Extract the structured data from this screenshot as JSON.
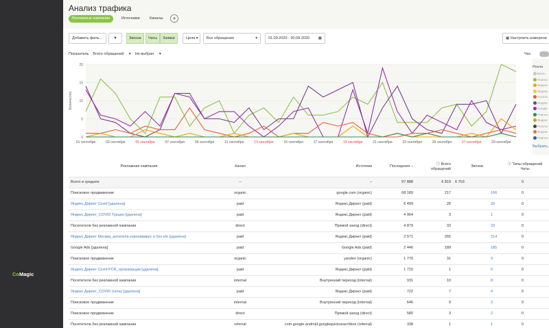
{
  "app": {
    "logo_brand": "Co",
    "logo_rest": "Magic"
  },
  "header": {
    "title": "Анализ трафика",
    "tabs": [
      "Рекламные кампании",
      "Источники",
      "Каналы"
    ],
    "add_label": "+"
  },
  "toolbar": {
    "add_filter": "Добавить филь...",
    "filter_icon": "▼",
    "segments": [
      "Звонки",
      "Чаты",
      "Заявки"
    ],
    "goals": "Цели",
    "requests_select": "Все обращения",
    "date_range": "01.09.2020 - 30.09.2020",
    "configure": "Настроить измерени"
  },
  "selectors": {
    "indicator_label": "Показатель",
    "indicator_value": "Всего обращений",
    "second_value": "Не выбран"
  },
  "view_toggle": {
    "label": "Час"
  },
  "legend": {
    "title": "Рекла",
    "items": [
      {
        "label": "Всего",
        "color": "#c8c8c8"
      },
      {
        "label": "Поиско",
        "color": "#8bc34a"
      },
      {
        "label": "Яндекс",
        "color": "#f0a500"
      },
      {
        "label": "Яндекс",
        "color": "#f6c343"
      },
      {
        "label": "Посети",
        "color": "#e35d3a"
      },
      {
        "label": "Яндекс",
        "color": "#7a3b8f"
      },
      {
        "label": "Google",
        "color": "#9c2bab"
      },
      {
        "label": "Поиско",
        "color": "#2e8b57"
      },
      {
        "label": "Яндекс",
        "color": "#c0a030"
      },
      {
        "label": "Посети",
        "color": "#444444"
      },
      {
        "label": "Яндекс",
        "color": "#d87a2a"
      },
      {
        "label": "Поиско",
        "color": "#3b5ba5"
      }
    ],
    "select_label": "Выбрать"
  },
  "chart_data": {
    "type": "line",
    "ylabel": "Количество",
    "ylim": [
      0,
      20
    ],
    "yticks": [
      0,
      5,
      10,
      15,
      20
    ],
    "x": [
      "01 сентября",
      "02",
      "03 сентября",
      "04",
      "05 сентября",
      "06",
      "07 сентября",
      "08",
      "09 сентября",
      "10",
      "11 сентября",
      "12",
      "13 сентября",
      "14",
      "15 сентября",
      "16",
      "17 сентября",
      "18",
      "19 сентября",
      "20",
      "21 сентября",
      "22",
      "23 сентября",
      "24",
      "25 сентября",
      "26",
      "27 сентября",
      "28",
      "29 сентября",
      "30"
    ],
    "xtick_labels": [
      "01 сентября",
      "03 сентября",
      "05 сентября",
      "07 сентября",
      "09 сентября",
      "11 сентября",
      "13 сентября",
      "15 сентября",
      "17 сентября",
      "19 сентября",
      "21 сентября",
      "23 сентября",
      "25 сентября",
      "27 сентября",
      "29 сентября"
    ],
    "weekend_labels": [
      "05 сентября",
      "13 сентября",
      "19 сентября",
      "27 сентября"
    ],
    "weekend_color": "#e53935",
    "series": [
      {
        "color": "#8bc34a",
        "values": [
          7,
          16,
          12,
          5,
          1,
          11,
          11,
          3,
          8,
          10,
          1,
          6,
          8,
          4,
          11,
          6,
          6,
          7,
          11,
          9,
          15,
          4,
          4,
          4,
          8,
          9,
          3,
          7,
          20,
          18
        ]
      },
      {
        "color": "#7a3b8f",
        "values": [
          14,
          5,
          4,
          1,
          0,
          2,
          12,
          11,
          5,
          5,
          4,
          8,
          2,
          5,
          5,
          14,
          11,
          13,
          15,
          0,
          8,
          14,
          5,
          2,
          1,
          9,
          9,
          10,
          1,
          9
        ]
      },
      {
        "color": "#9c2bab",
        "values": [
          13,
          6,
          5,
          3,
          7,
          3,
          12,
          12,
          5,
          7,
          7,
          3,
          0,
          3,
          7,
          8,
          0,
          0,
          13,
          1,
          19,
          7,
          1,
          6,
          4,
          2,
          10,
          4,
          2,
          3
        ]
      },
      {
        "color": "#e35d3a",
        "values": [
          1,
          1,
          2,
          1,
          3,
          2,
          2,
          8,
          2,
          1,
          0,
          1,
          3,
          0,
          1,
          1,
          4,
          3,
          4,
          1,
          0,
          0,
          1,
          1,
          2,
          1,
          0,
          1,
          2,
          1
        ]
      },
      {
        "color": "#f0a500",
        "values": [
          0,
          1,
          0,
          0,
          2,
          1,
          0,
          1,
          0,
          0,
          1,
          0,
          0,
          0,
          1,
          0,
          0,
          0,
          3,
          0,
          0,
          1,
          0,
          0,
          0,
          0,
          1,
          0,
          5,
          2
        ]
      },
      {
        "color": "#2e8b57",
        "values": [
          0,
          0,
          0,
          0,
          0,
          0,
          0,
          0,
          0,
          0,
          0,
          0,
          0,
          0,
          0,
          0,
          0,
          0,
          0,
          0,
          0,
          1,
          0,
          1,
          0,
          0,
          0,
          0,
          1,
          0
        ]
      }
    ]
  },
  "table": {
    "headers": {
      "campaign": "Рекламная кампания",
      "channel": "Канал",
      "source": "Источник",
      "visits": "Посещения",
      "total": "Всего обращений",
      "calls": "Звонки",
      "chats_group": "Типы обращений",
      "chats": "Чаты"
    },
    "rows": [
      {
        "campaign": "Всего и среднее",
        "channel": "–",
        "source": "–",
        "visits": "97 888",
        "total": "6 819",
        "calls": "6 703",
        "chats": "0",
        "link": false,
        "total_row": true
      },
      {
        "campaign": "Поисковое продвижение",
        "channel": "organic",
        "source": "google.com (organic)",
        "visits": "68 189",
        "total": "217",
        "calls": "166",
        "chats": "0",
        "link": false
      },
      {
        "campaign": "Яндекс.Директ Covid [удалена]",
        "channel": "paid",
        "source": "Яндекс.Директ (paid)",
        "visits": "6 499",
        "total": "28",
        "calls": "20",
        "chats": "0",
        "link": true
      },
      {
        "campaign": "Яндекс.Директ_COVID Турция [удалена]",
        "channel": "paid",
        "source": "Яндекс.Директ (paid)",
        "visits": "4 964",
        "total": "3",
        "calls": "1",
        "chats": "0",
        "link": true
      },
      {
        "campaign": "Посетители без рекламной кампании",
        "channel": "direct",
        "source": "Прямой заход (direct)",
        "visits": "4 879",
        "total": "33",
        "calls": "23",
        "chats": "0",
        "link": false
      },
      {
        "campaign": "Яндекс.Директ Москва_антитела коронавирус и без н/е [удалена]",
        "channel": "paid",
        "source": "Яндекс.Директ (paid)",
        "visits": "2 571",
        "total": "265",
        "calls": "214",
        "chats": "0",
        "link": true
      },
      {
        "campaign": "Google Ads [удалена]",
        "channel": "paid",
        "source": "Google Ads (paid)",
        "visits": "2 446",
        "total": "189",
        "calls": "185",
        "chats": "0",
        "link": false
      },
      {
        "campaign": "Поисковое продвижение",
        "channel": "organic",
        "source": "yandex (organic)",
        "visits": "1 770",
        "total": "31",
        "calls": "9",
        "chats": "0",
        "link": false
      },
      {
        "campaign": "Яндекс.Директ Covid PCR_организации [удалена]",
        "channel": "paid",
        "source": "Яндекс.Директ (paid)",
        "visits": "1 715",
        "total": "1",
        "calls": "0",
        "chats": "0",
        "link": true
      },
      {
        "campaign": "Посетители без рекламной кампании",
        "channel": "internal",
        "source": "Внутренний переход (internal)",
        "visits": "931",
        "total": "10",
        "calls": "8",
        "chats": "0",
        "link": false
      },
      {
        "campaign": "Яндекс.Директ_COVID (ночь) [удалена]",
        "channel": "paid",
        "source": "Яндекс.Директ (paid)",
        "visits": "722",
        "total": "7",
        "calls": "4",
        "chats": "0",
        "link": true
      },
      {
        "campaign": "Поисковое продвижение",
        "channel": "internal",
        "source": "Внутренний переход (internal)",
        "visits": "646",
        "total": "9",
        "calls": "3",
        "chats": "0",
        "link": false
      },
      {
        "campaign": "Поисковое продвижение",
        "channel": "direct",
        "source": "Прямой заход (direct)",
        "visits": "580",
        "total": "3",
        "calls": "2",
        "chats": "0",
        "link": false
      },
      {
        "campaign": "Посетители без рекламной кампании",
        "channel": "referral",
        "source": "com.google.android.googlequicksearchbox (referral)",
        "visits": "338",
        "total": "1",
        "calls": "1",
        "chats": "0",
        "link": false
      }
    ]
  }
}
